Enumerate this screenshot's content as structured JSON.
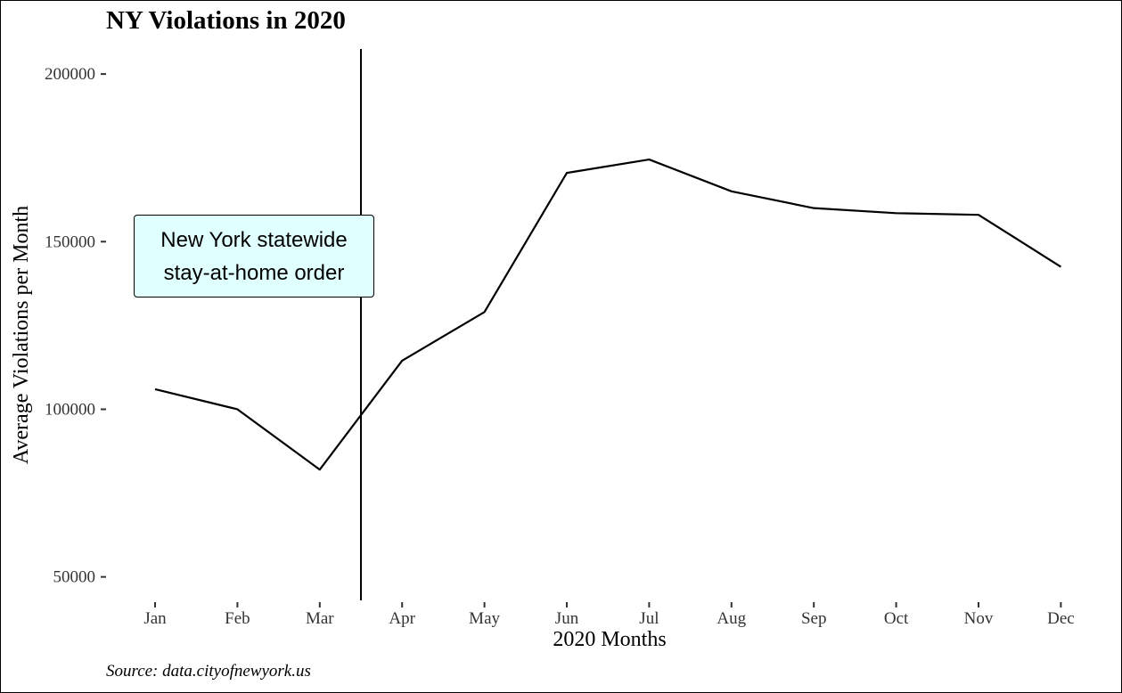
{
  "chart_data": {
    "type": "line",
    "title": "NY Violations in 2020",
    "xlabel": "2020 Months",
    "ylabel": "Average Violations per Month",
    "caption": "Source: data.cityofnewyork.us",
    "categories": [
      "Jan",
      "Feb",
      "Mar",
      "Apr",
      "May",
      "Jun",
      "Jul",
      "Aug",
      "Sep",
      "Oct",
      "Nov",
      "Dec"
    ],
    "series": [
      {
        "values": [
          106000,
          100000,
          82000,
          114500,
          129000,
          170500,
          174500,
          165000,
          160000,
          158500,
          158000,
          142500
        ],
        "color": "#000000"
      }
    ],
    "ylim": [
      43000,
      208000
    ],
    "yticks": [
      "50000",
      "100000",
      "150000",
      "200000"
    ],
    "vline": {
      "position_month": 3.5,
      "color": "#000000"
    },
    "annotation": {
      "lines": [
        "New York statewide",
        "stay-at-home order"
      ],
      "fill": "#e0ffff"
    },
    "grid": false,
    "legend": "none"
  }
}
